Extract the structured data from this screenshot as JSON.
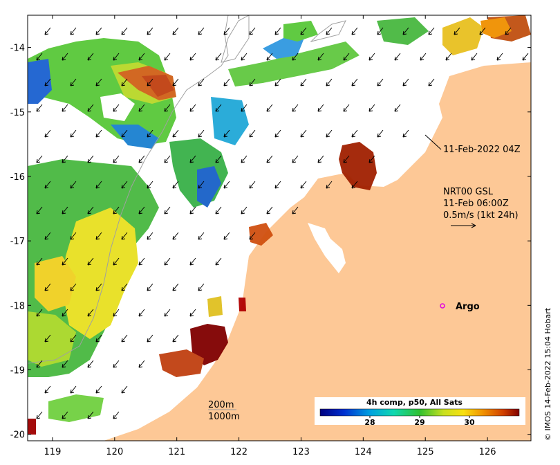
{
  "map": {
    "x_ticks": [
      "119",
      "120",
      "121",
      "122",
      "123",
      "124",
      "125",
      "126"
    ],
    "y_ticks": [
      "-14",
      "-15",
      "-16",
      "-17",
      "-18",
      "-19",
      "-20"
    ],
    "lon_range": [
      118.6,
      126.7
    ],
    "lat_range": [
      -20.1,
      -13.5
    ],
    "land_color": "#fdc896",
    "sea_color": "#ffffff"
  },
  "annotations": {
    "track_label": "11-Feb-2022 04Z",
    "current_title": "NRT00 GSL",
    "current_time": "11-Feb 06:00Z",
    "current_scale": "0.5m/s (1kt 24h)",
    "contour_200": "200m",
    "contour_1000": "1000m",
    "argo_label": "Argo",
    "argo_color": "#e000e0"
  },
  "colorbar": {
    "title": "4h comp, p50, All Sats",
    "ticks": [
      "28",
      "29",
      "30"
    ],
    "range": [
      27.0,
      31.0
    ]
  },
  "credit": "© IMOS 14-Feb-2022 15:04 Hobart"
}
